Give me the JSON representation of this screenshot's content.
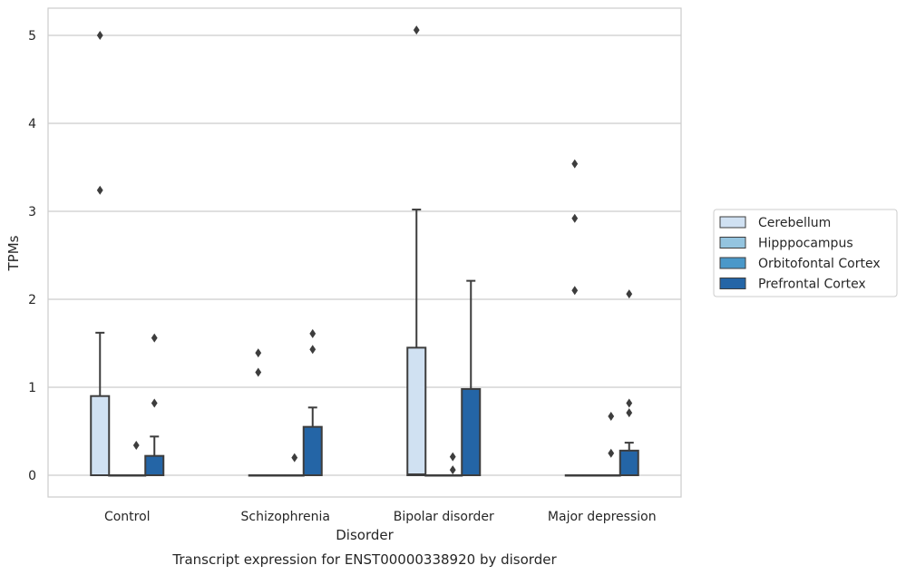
{
  "chart_data": {
    "type": "box",
    "caption": "Transcript expression for ENST00000338920 by disorder",
    "xlabel": "Disorder",
    "ylabel": "TPMs",
    "ylim": [
      -0.25,
      5.32
    ],
    "yticks": [
      0,
      1,
      2,
      3,
      4,
      5
    ],
    "grid": "horizontal",
    "legend_position": "right",
    "categories": [
      "Control",
      "Schizophrenia",
      "Bipolar disorder",
      "Major depression"
    ],
    "series": [
      {
        "name": "Cerebellum",
        "color": "#d0e1f2",
        "boxes": [
          {
            "q1": 0,
            "median": 0,
            "q3": 0.9,
            "whisker_low": 0,
            "whisker_high": 1.62,
            "outliers": [
              5.0,
              3.24
            ]
          },
          {
            "q1": 0,
            "median": 0,
            "q3": 0,
            "whisker_low": 0,
            "whisker_high": 0,
            "outliers": [
              1.39,
              1.17
            ]
          },
          {
            "q1": 0,
            "median": 0.01,
            "q3": 1.45,
            "whisker_low": 0,
            "whisker_high": 3.02,
            "outliers": [
              5.06
            ]
          },
          {
            "q1": 0,
            "median": 0,
            "q3": 0,
            "whisker_low": 0,
            "whisker_high": 0,
            "outliers": [
              3.54,
              2.92,
              2.1
            ]
          }
        ]
      },
      {
        "name": "Hipppocampus",
        "color": "#94c4df",
        "boxes": [
          {
            "q1": 0,
            "median": 0,
            "q3": 0,
            "whisker_low": 0,
            "whisker_high": 0,
            "outliers": []
          },
          {
            "q1": 0,
            "median": 0,
            "q3": 0,
            "whisker_low": 0,
            "whisker_high": 0,
            "outliers": []
          },
          {
            "q1": 0,
            "median": 0,
            "q3": 0,
            "whisker_low": 0,
            "whisker_high": 0,
            "outliers": []
          },
          {
            "q1": 0,
            "median": 0,
            "q3": 0,
            "whisker_low": 0,
            "whisker_high": 0,
            "outliers": []
          }
        ]
      },
      {
        "name": "Orbitofontal Cortex",
        "color": "#4a98c9",
        "boxes": [
          {
            "q1": 0,
            "median": 0,
            "q3": 0,
            "whisker_low": 0,
            "whisker_high": 0,
            "outliers": [
              0.34
            ]
          },
          {
            "q1": 0,
            "median": 0,
            "q3": 0,
            "whisker_low": 0,
            "whisker_high": 0,
            "outliers": [
              0.2
            ]
          },
          {
            "q1": 0,
            "median": 0,
            "q3": 0,
            "whisker_low": 0,
            "whisker_high": 0,
            "outliers": [
              0.21,
              0.06
            ]
          },
          {
            "q1": 0,
            "median": 0,
            "q3": 0,
            "whisker_low": 0,
            "whisker_high": 0,
            "outliers": [
              0.67,
              0.25
            ]
          }
        ]
      },
      {
        "name": "Prefrontal Cortex",
        "color": "#2465a6",
        "boxes": [
          {
            "q1": 0,
            "median": 0,
            "q3": 0.22,
            "whisker_low": 0,
            "whisker_high": 0.44,
            "outliers": [
              1.56,
              0.82
            ]
          },
          {
            "q1": 0,
            "median": 0,
            "q3": 0.55,
            "whisker_low": 0,
            "whisker_high": 0.77,
            "outliers": [
              1.61,
              1.43
            ]
          },
          {
            "q1": 0,
            "median": 0,
            "q3": 0.98,
            "whisker_low": 0,
            "whisker_high": 2.21,
            "outliers": []
          },
          {
            "q1": 0,
            "median": 0,
            "q3": 0.28,
            "whisker_low": 0,
            "whisker_high": 0.37,
            "outliers": [
              2.06,
              0.82,
              0.71
            ]
          }
        ]
      }
    ]
  }
}
